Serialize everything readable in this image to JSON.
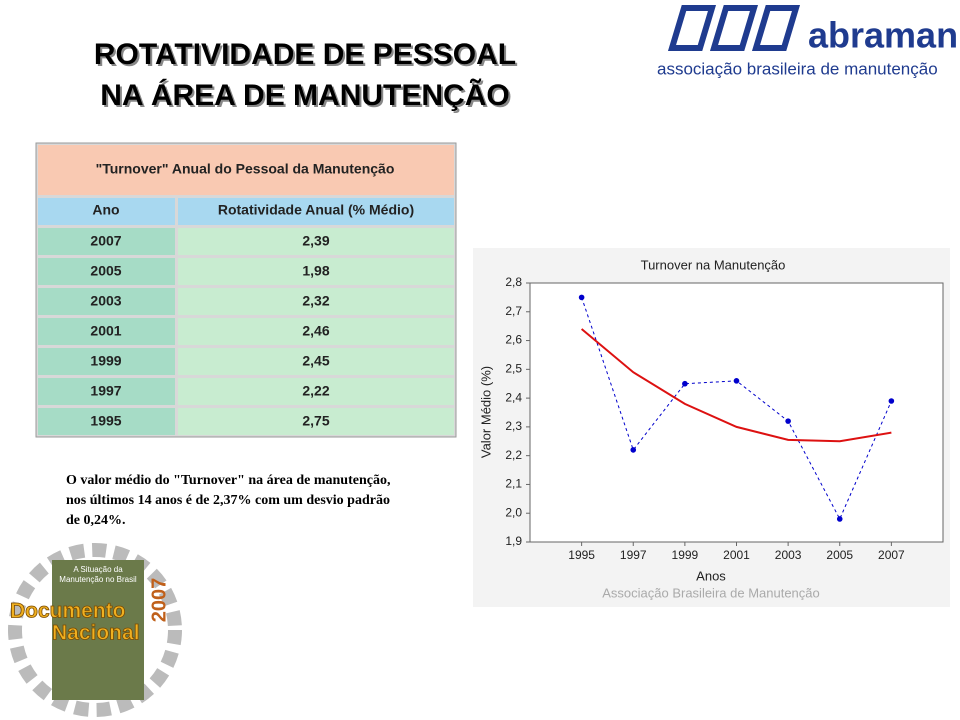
{
  "header": {
    "title_line1": "ROTATIVIDADE DE PESSOAL",
    "title_line2": "NA ÁREA DE MANUTENÇÃO",
    "logo_name": "abraman",
    "logo_subtitle": "associação brasileira de manutenção"
  },
  "table": {
    "title": "\"Turnover\" Anual do Pessoal da Manutenção",
    "columns": [
      "Ano",
      "Rotatividade Anual (% Médio)"
    ],
    "rows": [
      [
        "2007",
        "2,39"
      ],
      [
        "2005",
        "1,98"
      ],
      [
        "2003",
        "2,32"
      ],
      [
        "2001",
        "2,46"
      ],
      [
        "1999",
        "2,45"
      ],
      [
        "1997",
        "2,22"
      ],
      [
        "1995",
        "2,75"
      ]
    ]
  },
  "text": {
    "paragraph_lines": [
      "O valor médio do \"Turnover\" na área de manutenção,",
      "nos últimos 14 anos é de 2,37% com um desvio padrão",
      "de 0,24%."
    ]
  },
  "badge": {
    "caption_line1": "A Situação da",
    "caption_line2": "Manutenção no Brasil",
    "word1": "Documento",
    "word2": "Nacional",
    "year": "2007"
  },
  "chart_data": {
    "type": "line",
    "title": "Turnover na Manutenção",
    "x_label": "Anos",
    "y_label": "Valor Médio (%)",
    "credit": "Associação Brasileira de Manutenção",
    "x": [
      1995,
      1997,
      1999,
      2001,
      2003,
      2005,
      2007
    ],
    "xlim": [
      1993,
      2009
    ],
    "xticks": [
      1995,
      1997,
      1999,
      2001,
      2003,
      2005,
      2007
    ],
    "ylim": [
      1.9,
      2.8
    ],
    "yticks": [
      {
        "value": 1.9,
        "label": "1,9"
      },
      {
        "value": 2.0,
        "label": "2,0"
      },
      {
        "value": 2.1,
        "label": "2,1"
      },
      {
        "value": 2.2,
        "label": "2,2"
      },
      {
        "value": 2.3,
        "label": "2,3"
      },
      {
        "value": 2.4,
        "label": "2,4"
      },
      {
        "value": 2.5,
        "label": "2,5"
      },
      {
        "value": 2.6,
        "label": "2,6"
      },
      {
        "value": 2.7,
        "label": "2,7"
      },
      {
        "value": 2.8,
        "label": "2,8"
      }
    ],
    "series": [
      {
        "color": "#0000cc",
        "line_style": "dashed",
        "markers": true,
        "values": [
          2.75,
          2.22,
          2.45,
          2.46,
          2.32,
          1.98,
          2.39
        ]
      },
      {
        "color": "#dd1111",
        "line_style": "solid",
        "markers": false,
        "values": [
          2.64,
          2.49,
          2.38,
          2.3,
          2.255,
          2.25,
          2.28
        ]
      }
    ]
  }
}
